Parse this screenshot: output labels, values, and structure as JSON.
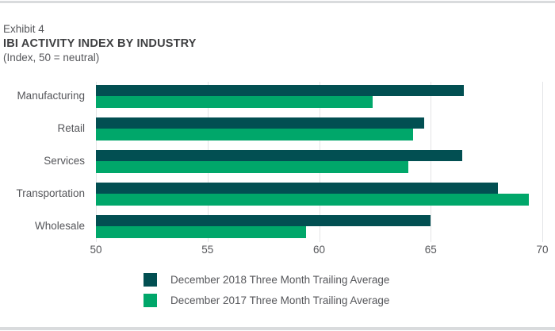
{
  "header": {
    "exhibit": "Exhibit 4",
    "title": "IBI ACTIVITY INDEX BY INDUSTRY",
    "subtitle": "(Index, 50 = neutral)"
  },
  "colors": {
    "series_2018": "#024f52",
    "series_2017": "#00a76a",
    "gridline": "#e3e4e6",
    "text_gray": "#55565a",
    "rule_gray": "#d9dbdd"
  },
  "chart_data": {
    "type": "bar",
    "orientation": "horizontal",
    "title": "IBI ACTIVITY INDEX BY INDUSTRY",
    "subtitle": "(Index, 50 = neutral)",
    "categories": [
      "Manufacturing",
      "Retail",
      "Services",
      "Transportation",
      "Wholesale"
    ],
    "series": [
      {
        "name": "December 2018 Three Month Trailing Average",
        "color": "#024f52",
        "values": [
          66.5,
          64.7,
          66.4,
          68.0,
          65.0
        ]
      },
      {
        "name": "December 2017 Three Month Trailing Average",
        "color": "#00a76a",
        "values": [
          62.4,
          64.2,
          64.0,
          69.4,
          59.4
        ]
      }
    ],
    "xlim": [
      50,
      70
    ],
    "xticks": [
      50,
      55,
      60,
      65,
      70
    ],
    "grid": "vertical",
    "legend_position": "bottom"
  }
}
